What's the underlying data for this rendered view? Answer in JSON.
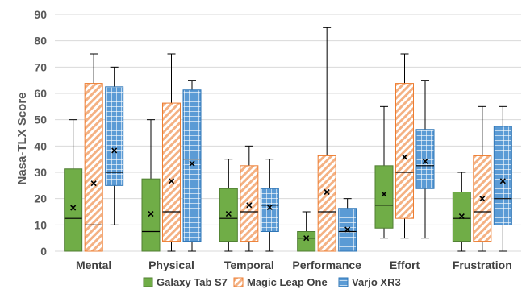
{
  "chart_data": {
    "type": "box",
    "ylabel": "Nasa-TLX Score",
    "xlabel": "",
    "ylim": [
      0,
      90
    ],
    "yticks": [
      0,
      10,
      20,
      30,
      40,
      50,
      60,
      70,
      80,
      90
    ],
    "grid": true,
    "legend_position": "bottom",
    "categories": [
      "Mental",
      "Physical",
      "Temporal",
      "Performance",
      "Effort",
      "Frustration"
    ],
    "series": [
      {
        "name": "Galaxy Tab S7",
        "color": "#70ad47",
        "pattern": "solid",
        "boxes": [
          {
            "min": 0,
            "q1": 0,
            "median": 12.5,
            "q3": 31.3,
            "max": 50,
            "mean": 16.5
          },
          {
            "min": 0,
            "q1": 0,
            "median": 7.5,
            "q3": 27.5,
            "max": 50,
            "mean": 14.2
          },
          {
            "min": 0,
            "q1": 3.8,
            "median": 12.5,
            "q3": 23.8,
            "max": 35,
            "mean": 14.2
          },
          {
            "min": 0,
            "q1": 0,
            "median": 5,
            "q3": 7.5,
            "max": 15,
            "mean": 5
          },
          {
            "min": 5,
            "q1": 8.8,
            "median": 17.5,
            "q3": 32.5,
            "max": 55,
            "mean": 21.7
          },
          {
            "min": 0,
            "q1": 3.8,
            "median": 12.5,
            "q3": 22.5,
            "max": 30,
            "mean": 13.3
          }
        ]
      },
      {
        "name": "Magic Leap One",
        "color": "#f4b183",
        "pattern": "diagonal-hatch",
        "boxes": [
          {
            "min": 0,
            "q1": 0,
            "median": 10,
            "q3": 63.8,
            "max": 75,
            "mean": 25.8
          },
          {
            "min": 0,
            "q1": 3.8,
            "median": 15,
            "q3": 56.3,
            "max": 75,
            "mean": 26.7
          },
          {
            "min": 0,
            "q1": 3.8,
            "median": 15,
            "q3": 32.5,
            "max": 40,
            "mean": 17.5
          },
          {
            "min": 0,
            "q1": 0,
            "median": 15,
            "q3": 36.3,
            "max": 85,
            "mean": 22.5
          },
          {
            "min": 5,
            "q1": 12.5,
            "median": 30,
            "q3": 63.8,
            "max": 75,
            "mean": 35.8
          },
          {
            "min": 0,
            "q1": 3.8,
            "median": 15,
            "q3": 36.3,
            "max": 55,
            "mean": 20
          }
        ]
      },
      {
        "name": "Varjo XR3",
        "color": "#5b9bd5",
        "pattern": "grid-hatch",
        "boxes": [
          {
            "min": 10,
            "q1": 25,
            "median": 30,
            "q3": 62.5,
            "max": 70,
            "mean": 38.3
          },
          {
            "min": 0,
            "q1": 3.8,
            "median": 35,
            "q3": 61.3,
            "max": 65,
            "mean": 33.3
          },
          {
            "min": 0,
            "q1": 7.5,
            "median": 17.5,
            "q3": 23.8,
            "max": 35,
            "mean": 16.7
          },
          {
            "min": 0,
            "q1": 0,
            "median": 7.5,
            "q3": 16.3,
            "max": 20,
            "mean": 8.3
          },
          {
            "min": 5,
            "q1": 23.8,
            "median": 32.5,
            "q3": 46.3,
            "max": 65,
            "mean": 34.2
          },
          {
            "min": 0,
            "q1": 10,
            "median": 20,
            "q3": 47.5,
            "max": 55,
            "mean": 26.7
          }
        ]
      }
    ]
  }
}
